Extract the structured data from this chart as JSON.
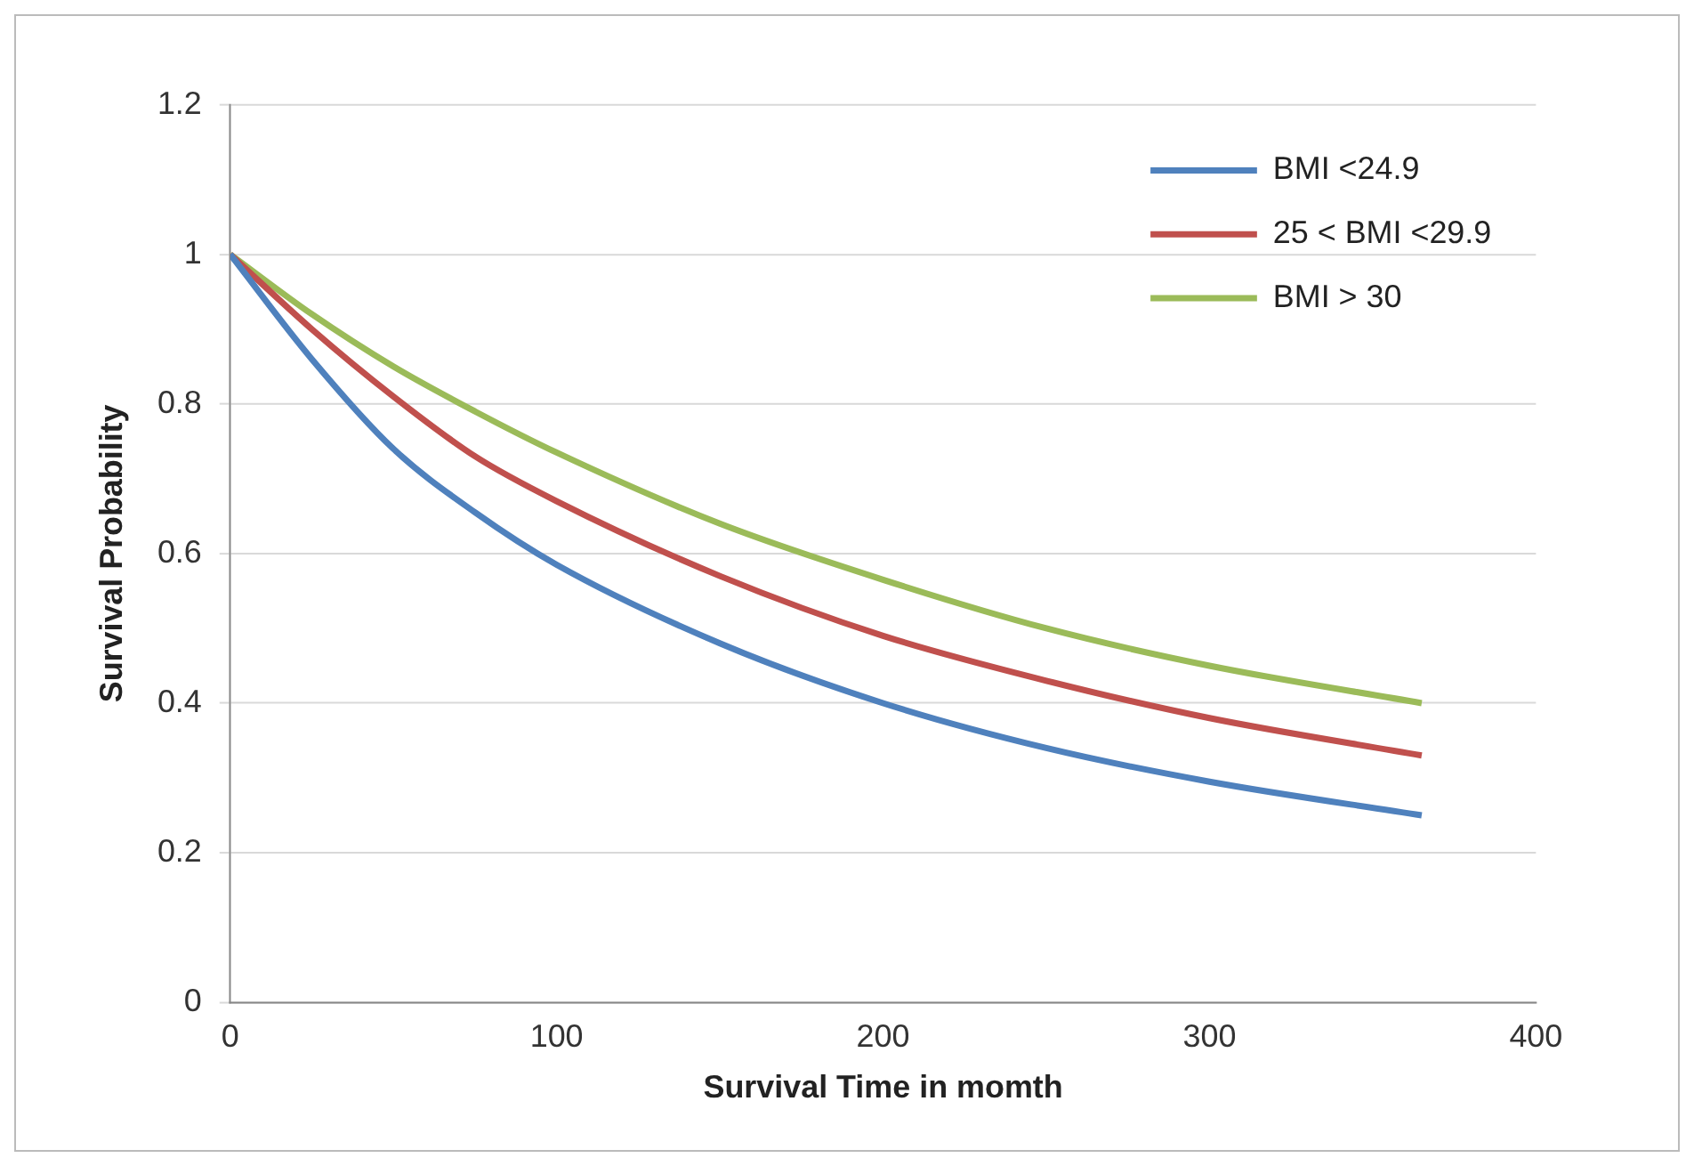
{
  "chart_data": {
    "type": "line",
    "xlabel": "Survival Time in momth",
    "ylabel": "Survival Probability",
    "x": [
      0,
      25,
      50,
      75,
      100,
      150,
      200,
      250,
      300,
      365
    ],
    "series": [
      {
        "name": "BMI <24.9",
        "color": "#4f81bd",
        "values": [
          1,
          0.86,
          0.74,
          0.655,
          0.585,
          0.48,
          0.4,
          0.34,
          0.295,
          0.25
        ]
      },
      {
        "name": "25 < BMI <29.9",
        "color": "#c0504d",
        "values": [
          1,
          0.9,
          0.81,
          0.73,
          0.67,
          0.57,
          0.49,
          0.43,
          0.38,
          0.33
        ]
      },
      {
        "name": "BMI > 30",
        "color": "#9bbb59",
        "values": [
          1,
          0.92,
          0.85,
          0.79,
          0.735,
          0.64,
          0.565,
          0.5,
          0.45,
          0.4
        ]
      }
    ],
    "xlim": [
      0,
      400
    ],
    "xticks": [
      0,
      100,
      200,
      300,
      400
    ],
    "ylim": [
      0,
      1.2
    ],
    "yticks": [
      0,
      0.2,
      0.4,
      0.6,
      0.8,
      1,
      1.2
    ],
    "grid": "y",
    "legend": "top right",
    "marker": "none",
    "line_style": "solid"
  }
}
